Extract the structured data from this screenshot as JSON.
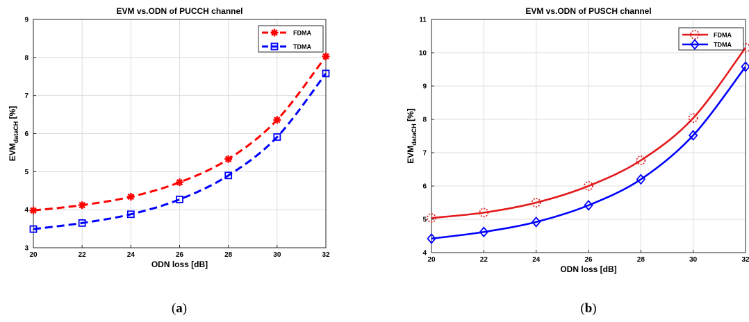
{
  "chart_data": [
    {
      "type": "line",
      "title": "EVM vs.ODN of PUCCH channel",
      "xlabel": "ODN loss [dB]",
      "ylabel_main": "EVM",
      "ylabel_sub": "dataCH",
      "ylabel_unit": " [%]",
      "x": [
        20,
        22,
        24,
        26,
        28,
        30,
        32
      ],
      "xticks": [
        20,
        22,
        24,
        26,
        28,
        30,
        32
      ],
      "xlim": [
        20,
        32
      ],
      "yticks": [
        3,
        4,
        5,
        6,
        7,
        8,
        9
      ],
      "ylim": [
        3,
        9
      ],
      "grid": true,
      "legend": "top-right",
      "caption_open": "(",
      "caption_letter": "a",
      "caption_close": ")",
      "series": [
        {
          "name": "FDMA",
          "color": "#ff0000",
          "dash": "dashed",
          "marker": "asterisk",
          "values": [
            3.98,
            4.12,
            4.34,
            4.72,
            5.33,
            6.36,
            8.03
          ]
        },
        {
          "name": "TDMA",
          "color": "#0000ff",
          "dash": "dashed",
          "marker": "square",
          "values": [
            3.49,
            3.65,
            3.88,
            4.27,
            4.9,
            5.91,
            7.58
          ]
        }
      ]
    },
    {
      "type": "line",
      "title": "EVM vs.ODN of PUSCH channel",
      "xlabel": "ODN loss [dB]",
      "ylabel_main": "EVM",
      "ylabel_sub": "dataCH",
      "ylabel_unit": " [%]",
      "x": [
        20,
        22,
        24,
        26,
        28,
        30,
        32
      ],
      "xticks": [
        20,
        22,
        24,
        26,
        28,
        30,
        32
      ],
      "xlim": [
        20,
        32
      ],
      "yticks": [
        4,
        5,
        6,
        7,
        8,
        9,
        10,
        11
      ],
      "ylim": [
        4,
        11
      ],
      "grid": true,
      "legend": "top-right",
      "caption_open": "(",
      "caption_letter": "b",
      "caption_close": ")",
      "series": [
        {
          "name": "FDMA",
          "color": "#e31a1c",
          "dash": "solid",
          "marker": "dotted-circle",
          "values": [
            5.04,
            5.2,
            5.5,
            6.0,
            6.77,
            8.04,
            10.15
          ]
        },
        {
          "name": "TDMA",
          "color": "#0000ff",
          "dash": "solid",
          "marker": "diamond",
          "values": [
            4.42,
            4.62,
            4.92,
            5.42,
            6.2,
            7.52,
            9.58
          ]
        }
      ]
    }
  ]
}
